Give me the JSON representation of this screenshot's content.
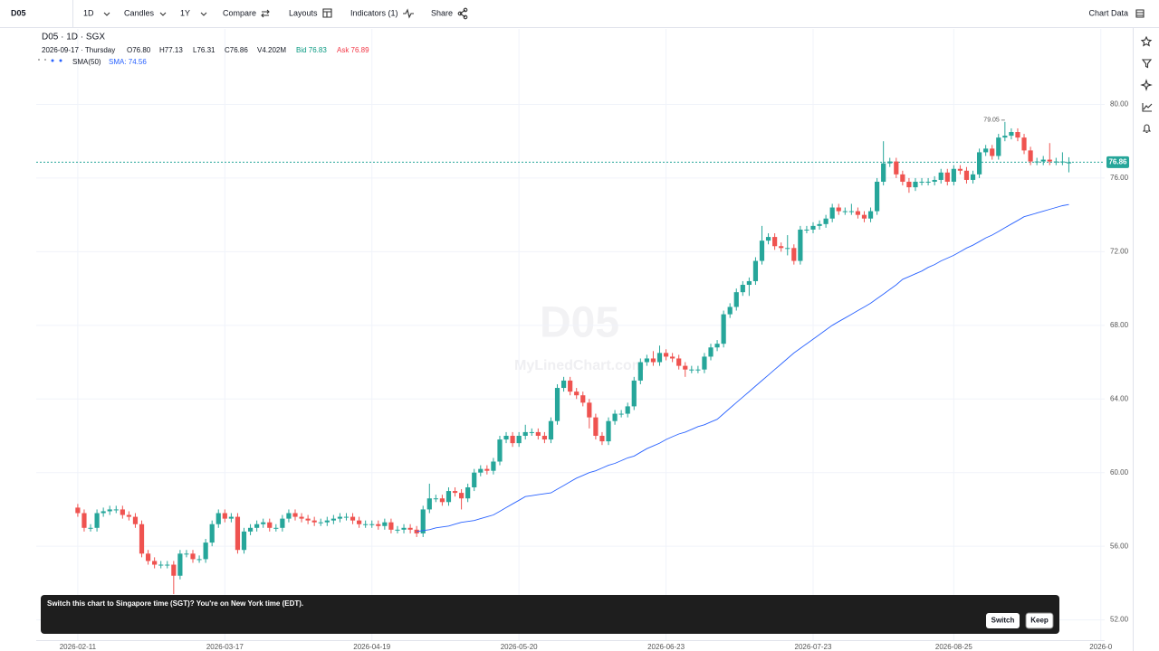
{
  "toolbar": {
    "symbol": "D05",
    "interval": "1D",
    "chart_type": "Candles",
    "range": "1Y",
    "compare": "Compare",
    "layouts": "Layouts",
    "indicators": "Indicators (1)",
    "share": "Share",
    "chart_data_button": "Chart Data"
  },
  "legend": {
    "title": "D05 · 1D · SGX",
    "date": "2026-09-17 · Thursday",
    "open": "O76.80",
    "high": "H77.13",
    "low": "L76.31",
    "close": "C76.86",
    "volume": "V4.202M",
    "bid": "Bid 76.83",
    "ask": "Ask 76.89",
    "sma_name": "SMA(50)",
    "sma_value": "SMA: 74.56"
  },
  "watermark": {
    "symbol": "D05",
    "site": "MyLinedChart.com"
  },
  "toast": {
    "message": "Switch this chart to Singapore time (SGT)? You're on New York time (EDT).",
    "switch": "Switch",
    "keep": "Keep"
  },
  "chart_data": {
    "type": "candlestick",
    "up_color": "#26a69a",
    "down_color": "#ef5350",
    "open": [
      58.1,
      57.8,
      57.0,
      57.0,
      57.8,
      57.9,
      58.0,
      58.0,
      57.7,
      57.6,
      57.2,
      55.6,
      55.2,
      55.0,
      55.0,
      55.0,
      54.4,
      55.6,
      55.6,
      55.3,
      55.3,
      56.2,
      57.2,
      57.8,
      57.5,
      57.6,
      55.8,
      56.8,
      57.0,
      57.2,
      57.3,
      57.0,
      57.0,
      57.5,
      57.8,
      57.6,
      57.5,
      57.4,
      57.3,
      57.3,
      57.4,
      57.5,
      57.6,
      57.6,
      57.4,
      57.2,
      57.2,
      57.2,
      57.1,
      57.3,
      56.9,
      56.9,
      57.0,
      56.9,
      56.7,
      58.0,
      58.6,
      58.6,
      58.4,
      59.0,
      58.9,
      58.6,
      59.2,
      60.0,
      60.2,
      60.1,
      60.6,
      61.8,
      62.0,
      61.6,
      62.0,
      62.2,
      62.2,
      62.0,
      61.8,
      62.8,
      64.6,
      65.0,
      64.4,
      64.2,
      63.8,
      63.0,
      62.0,
      61.7,
      62.8,
      63.2,
      63.2,
      63.6,
      65.0,
      66.0,
      66.2,
      66.0,
      66.5,
      66.3,
      66.2,
      65.8,
      65.6,
      65.6,
      65.6,
      66.3,
      66.8,
      67.0,
      68.6,
      69.0,
      69.8,
      70.2,
      70.4,
      71.5,
      72.6,
      72.8,
      72.3,
      72.2,
      72.2,
      71.5,
      73.2,
      73.2,
      73.4,
      73.5,
      73.8,
      74.4,
      74.2,
      74.2,
      74.2,
      74.0,
      73.8,
      74.2,
      75.8,
      76.8,
      76.9,
      76.2,
      75.8,
      75.5,
      75.8,
      75.8,
      75.8,
      75.9,
      76.3,
      75.8,
      76.5,
      76.4,
      75.9,
      76.2,
      77.4,
      77.6,
      77.2,
      78.2,
      78.3,
      78.5,
      78.2,
      77.5,
      76.9,
      76.9,
      77.0,
      76.9,
      76.9,
      76.8
    ],
    "high": [
      58.3,
      58.0,
      57.2,
      58.0,
      58.1,
      58.2,
      58.2,
      58.2,
      57.9,
      57.8,
      57.4,
      55.8,
      55.4,
      55.2,
      55.2,
      55.2,
      55.8,
      55.8,
      55.8,
      55.5,
      56.4,
      57.4,
      58.0,
      58.0,
      57.8,
      57.8,
      57.0,
      57.2,
      57.4,
      57.5,
      57.5,
      57.2,
      57.7,
      58.0,
      58.0,
      57.8,
      57.7,
      57.6,
      57.5,
      57.6,
      57.7,
      57.8,
      57.8,
      57.8,
      57.6,
      57.4,
      57.4,
      57.4,
      57.5,
      57.5,
      57.1,
      57.2,
      57.2,
      57.1,
      58.2,
      59.4,
      58.8,
      58.8,
      59.2,
      59.2,
      59.1,
      59.4,
      60.2,
      60.4,
      60.4,
      60.8,
      62.0,
      62.2,
      62.2,
      62.2,
      62.6,
      62.4,
      62.4,
      62.2,
      63.0,
      64.8,
      65.2,
      65.2,
      64.6,
      64.4,
      64.0,
      63.2,
      62.2,
      63.0,
      63.4,
      63.4,
      63.8,
      65.2,
      66.2,
      66.4,
      66.6,
      66.9,
      66.7,
      66.5,
      66.4,
      66.0,
      65.8,
      65.8,
      66.5,
      67.0,
      67.2,
      68.8,
      69.2,
      70.0,
      70.4,
      70.6,
      71.7,
      73.4,
      73.0,
      73.0,
      72.5,
      72.9,
      72.4,
      73.4,
      73.4,
      73.6,
      73.7,
      74.0,
      74.6,
      74.6,
      74.4,
      74.6,
      74.4,
      74.2,
      74.4,
      76.0,
      78.0,
      77.1,
      77.1,
      76.4,
      76.0,
      76.0,
      76.0,
      76.0,
      76.1,
      76.5,
      76.5,
      76.7,
      76.7,
      76.6,
      76.4,
      77.6,
      77.8,
      77.8,
      78.4,
      79.05,
      78.7,
      78.7,
      78.4,
      77.7,
      77.1,
      77.2,
      77.9,
      77.1,
      77.4,
      77.13
    ],
    "low": [
      57.6,
      56.8,
      56.8,
      56.8,
      57.6,
      57.7,
      57.8,
      57.5,
      57.4,
      57.0,
      55.4,
      55.0,
      54.8,
      54.8,
      54.8,
      53.4,
      54.2,
      55.4,
      55.1,
      55.1,
      55.1,
      56.0,
      57.0,
      57.3,
      57.3,
      55.6,
      55.6,
      56.6,
      56.8,
      57.0,
      56.8,
      56.8,
      56.8,
      57.3,
      57.4,
      57.3,
      57.2,
      57.1,
      57.1,
      57.1,
      57.2,
      57.3,
      57.4,
      57.2,
      57.0,
      57.0,
      57.0,
      56.9,
      56.9,
      56.7,
      56.7,
      56.7,
      56.7,
      56.5,
      56.5,
      57.8,
      58.4,
      58.2,
      58.2,
      58.7,
      58.0,
      58.4,
      59.0,
      59.8,
      59.9,
      59.9,
      60.4,
      61.6,
      61.4,
      61.4,
      61.8,
      62.0,
      61.8,
      61.6,
      61.6,
      62.6,
      64.4,
      64.2,
      64.0,
      63.6,
      62.4,
      61.8,
      61.5,
      61.5,
      62.6,
      63.0,
      63.0,
      63.4,
      64.8,
      65.8,
      65.8,
      65.8,
      66.1,
      66.0,
      65.6,
      65.2,
      65.4,
      65.4,
      65.4,
      66.1,
      66.6,
      66.8,
      68.4,
      68.8,
      69.6,
      69.6,
      70.2,
      71.3,
      72.4,
      72.1,
      72.0,
      71.8,
      71.3,
      71.3,
      73.0,
      73.0,
      73.2,
      73.3,
      73.6,
      74.0,
      74.0,
      74.0,
      73.8,
      73.6,
      73.6,
      74.0,
      75.6,
      76.6,
      76.0,
      75.6,
      75.2,
      75.3,
      75.6,
      75.6,
      75.6,
      75.7,
      75.6,
      75.6,
      76.2,
      75.7,
      75.7,
      76.0,
      77.2,
      77.0,
      77.0,
      78.0,
      78.1,
      78.0,
      77.3,
      76.7,
      76.7,
      76.7,
      76.7,
      76.7,
      76.7,
      76.31
    ],
    "close": [
      57.8,
      57.0,
      57.0,
      57.8,
      57.9,
      58.0,
      58.0,
      57.7,
      57.6,
      57.2,
      55.6,
      55.2,
      55.0,
      55.0,
      55.0,
      54.4,
      55.6,
      55.6,
      55.3,
      55.3,
      56.2,
      57.2,
      57.8,
      57.5,
      57.6,
      55.8,
      56.8,
      57.0,
      57.2,
      57.3,
      57.0,
      57.0,
      57.5,
      57.8,
      57.6,
      57.5,
      57.4,
      57.3,
      57.3,
      57.4,
      57.5,
      57.6,
      57.6,
      57.4,
      57.2,
      57.2,
      57.2,
      57.1,
      57.3,
      56.9,
      56.9,
      57.0,
      56.9,
      56.7,
      58.0,
      58.6,
      58.6,
      58.4,
      59.0,
      58.9,
      58.6,
      59.2,
      60.0,
      60.2,
      60.1,
      60.6,
      61.8,
      62.0,
      61.6,
      62.0,
      62.2,
      62.2,
      62.0,
      61.8,
      62.8,
      64.6,
      65.0,
      64.4,
      64.2,
      63.8,
      63.0,
      62.0,
      61.7,
      62.8,
      63.2,
      63.2,
      63.6,
      65.0,
      66.0,
      66.2,
      66.0,
      66.5,
      66.3,
      66.2,
      65.8,
      65.6,
      65.6,
      65.6,
      66.3,
      66.8,
      67.0,
      68.6,
      69.0,
      69.8,
      70.2,
      70.4,
      71.5,
      72.6,
      72.8,
      72.3,
      72.2,
      72.2,
      71.5,
      73.2,
      73.2,
      73.4,
      73.5,
      73.8,
      74.4,
      74.2,
      74.2,
      74.2,
      74.0,
      73.8,
      74.2,
      75.8,
      76.8,
      76.9,
      76.2,
      75.8,
      75.5,
      75.8,
      75.8,
      75.8,
      75.9,
      76.3,
      75.8,
      76.5,
      76.4,
      75.9,
      76.2,
      77.4,
      77.6,
      77.2,
      78.2,
      78.3,
      78.5,
      78.2,
      77.5,
      76.9,
      76.9,
      77.0,
      76.9,
      76.9,
      76.9,
      76.86
    ],
    "sma": {
      "color": "#2962ff",
      "values": [
        null,
        null,
        null,
        null,
        null,
        null,
        null,
        null,
        null,
        null,
        null,
        null,
        null,
        null,
        null,
        null,
        null,
        null,
        null,
        null,
        null,
        null,
        null,
        null,
        null,
        null,
        null,
        null,
        null,
        null,
        null,
        null,
        null,
        null,
        null,
        null,
        null,
        null,
        null,
        null,
        null,
        null,
        null,
        null,
        null,
        null,
        null,
        null,
        null,
        null,
        null,
        null,
        null,
        56.8,
        56.85,
        56.9,
        57.0,
        57.05,
        57.1,
        57.2,
        57.3,
        57.35,
        57.4,
        57.5,
        57.6,
        57.7,
        57.9,
        58.1,
        58.3,
        58.5,
        58.7,
        58.75,
        58.8,
        58.85,
        58.9,
        59.1,
        59.3,
        59.5,
        59.7,
        59.85,
        60.0,
        60.1,
        60.25,
        60.4,
        60.5,
        60.65,
        60.8,
        60.9,
        61.1,
        61.3,
        61.45,
        61.6,
        61.8,
        61.95,
        62.1,
        62.2,
        62.35,
        62.5,
        62.6,
        62.75,
        62.9,
        63.2,
        63.5,
        63.8,
        64.1,
        64.4,
        64.7,
        65.0,
        65.3,
        65.6,
        65.9,
        66.2,
        66.5,
        66.75,
        67.0,
        67.25,
        67.5,
        67.75,
        68.0,
        68.2,
        68.4,
        68.6,
        68.8,
        69.0,
        69.2,
        69.45,
        69.7,
        69.95,
        70.2,
        70.5,
        70.65,
        70.8,
        70.95,
        71.15,
        71.3,
        71.5,
        71.65,
        71.8,
        72.0,
        72.2,
        72.35,
        72.55,
        72.75,
        72.9,
        73.1,
        73.3,
        73.5,
        73.7,
        73.9,
        74.0,
        74.1,
        74.2,
        74.3,
        74.4,
        74.5,
        74.56
      ]
    },
    "last_price": {
      "value": 76.86,
      "label": "76.86",
      "color": "#26a69a"
    },
    "annotations": [
      {
        "x": 145,
        "value": 79.05,
        "label": "79.05"
      }
    ],
    "xlim": [
      -6.5,
      160.6
    ],
    "xticks": [
      {
        "value": 0,
        "label": "2026-02-11"
      },
      {
        "value": 23,
        "label": "2026-03-17"
      },
      {
        "value": 46,
        "label": "2026-04-19"
      },
      {
        "value": 69,
        "label": "2026-05-20"
      },
      {
        "value": 92,
        "label": "2026-06-23"
      },
      {
        "value": 115,
        "label": "2026-07-23"
      },
      {
        "value": 137,
        "label": "2026-08-25"
      },
      {
        "value": 160,
        "label": "2026-0"
      }
    ],
    "ylim": [
      50.9,
      84.1
    ],
    "yticks": [
      {
        "value": 52,
        "label": "52.00"
      },
      {
        "value": 56,
        "label": "56.00"
      },
      {
        "value": 60,
        "label": "60.00"
      },
      {
        "value": 64,
        "label": "64.00"
      },
      {
        "value": 68,
        "label": "68.00"
      },
      {
        "value": 72,
        "label": "72.00"
      },
      {
        "value": 76,
        "label": "76.00"
      },
      {
        "value": 80,
        "label": "80.00"
      }
    ],
    "grid": true
  }
}
